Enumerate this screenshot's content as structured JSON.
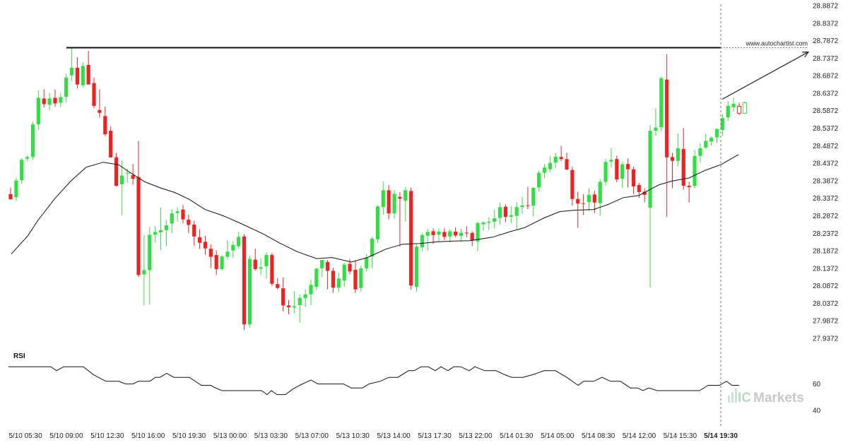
{
  "source_label": "www.autochartist.com",
  "watermark": {
    "prefix": "IC",
    "name": "Markets"
  },
  "colors": {
    "up": "#33dd44",
    "down": "#ee2222",
    "resistance": "#111111",
    "ma": "#111111",
    "vline": "#777777",
    "arrow": "#222222"
  },
  "chart_data": {
    "type": "candlestick",
    "title": "",
    "price_axis": {
      "min": 27.9372,
      "max": 28.8872,
      "ticks": [
        "28.8872",
        "28.8372",
        "28.7872",
        "28.7372",
        "28.6872",
        "28.6372",
        "28.5872",
        "28.5372",
        "28.4872",
        "28.4372",
        "28.3872",
        "28.3372",
        "28.2872",
        "28.2372",
        "28.1872",
        "28.1372",
        "28.0872",
        "28.0372",
        "27.9872",
        "27.9372"
      ]
    },
    "time_axis": {
      "labels": [
        "5/10 05:30",
        "5/10 09:00",
        "5/10 12:30",
        "5/10 16:00",
        "5/10 19:30",
        "5/13 00:00",
        "5/13 03:30",
        "5/13 07:00",
        "5/13 10:30",
        "5/13 14:00",
        "5/13 17:30",
        "5/13 22:00",
        "5/14 01:30",
        "5/14 05:00",
        "5/14 08:30",
        "5/14 12:00",
        "5/14 15:30",
        "5/14 19:30"
      ],
      "current_label": "5/14 19:30"
    },
    "resistance_level": 28.7672,
    "projection": {
      "from": 28.62,
      "to": 28.755
    },
    "candles": [
      [
        28.349,
        28.367,
        28.334,
        28.334
      ],
      [
        28.34,
        28.396,
        28.33,
        28.388
      ],
      [
        28.389,
        28.452,
        28.378,
        28.447
      ],
      [
        28.45,
        28.46,
        28.443,
        28.455
      ],
      [
        28.455,
        28.556,
        28.447,
        28.548
      ],
      [
        28.548,
        28.645,
        28.533,
        28.624
      ],
      [
        28.622,
        28.648,
        28.596,
        28.606
      ],
      [
        28.604,
        28.638,
        28.588,
        28.622
      ],
      [
        28.624,
        28.648,
        28.598,
        28.608
      ],
      [
        28.61,
        28.638,
        28.597,
        28.626
      ],
      [
        28.627,
        28.693,
        28.61,
        28.682
      ],
      [
        28.688,
        28.768,
        28.672,
        28.71
      ],
      [
        28.71,
        28.74,
        28.651,
        28.662
      ],
      [
        28.66,
        28.725,
        28.654,
        28.715
      ],
      [
        28.718,
        28.758,
        28.662,
        28.662
      ],
      [
        28.666,
        28.682,
        28.594,
        28.601
      ],
      [
        28.589,
        28.648,
        28.568,
        28.581
      ],
      [
        28.572,
        28.599,
        28.514,
        28.52
      ],
      [
        28.53,
        28.542,
        28.453,
        28.454
      ],
      [
        28.454,
        28.467,
        28.37,
        28.373
      ],
      [
        28.377,
        28.445,
        28.288,
        28.402
      ],
      [
        28.41,
        28.422,
        28.381,
        28.41
      ],
      [
        28.403,
        28.435,
        28.376,
        28.393
      ],
      [
        28.398,
        28.501,
        28.112,
        28.118
      ],
      [
        28.12,
        28.232,
        28.031,
        28.132
      ],
      [
        28.132,
        28.254,
        28.034,
        28.233
      ],
      [
        28.233,
        28.257,
        28.212,
        28.241
      ],
      [
        28.24,
        28.31,
        28.19,
        28.246
      ],
      [
        28.246,
        28.275,
        28.2,
        28.26
      ],
      [
        28.265,
        28.306,
        28.238,
        28.294
      ],
      [
        28.295,
        28.311,
        28.271,
        28.3
      ],
      [
        28.305,
        28.318,
        28.266,
        28.277
      ],
      [
        28.276,
        28.291,
        28.238,
        28.261
      ],
      [
        28.262,
        28.273,
        28.202,
        28.228
      ],
      [
        28.226,
        28.249,
        28.192,
        28.21
      ],
      [
        28.213,
        28.23,
        28.176,
        28.194
      ],
      [
        28.193,
        28.206,
        28.138,
        28.17
      ],
      [
        28.175,
        28.188,
        28.118,
        28.135
      ],
      [
        28.135,
        28.175,
        28.13,
        28.171
      ],
      [
        28.17,
        28.218,
        28.162,
        28.185
      ],
      [
        28.188,
        28.214,
        28.167,
        28.204
      ],
      [
        28.2,
        28.241,
        28.192,
        28.227
      ],
      [
        28.228,
        28.235,
        27.961,
        27.977
      ],
      [
        27.977,
        28.173,
        27.968,
        28.164
      ],
      [
        28.162,
        28.193,
        28.131,
        28.135
      ],
      [
        28.136,
        28.166,
        28.118,
        28.14
      ],
      [
        28.143,
        28.183,
        28.108,
        28.175
      ],
      [
        28.175,
        28.181,
        28.087,
        28.093
      ],
      [
        28.092,
        28.109,
        28.077,
        28.081
      ],
      [
        28.08,
        28.111,
        28.014,
        28.031
      ],
      [
        28.031,
        28.046,
        28.006,
        28.026
      ],
      [
        28.025,
        28.072,
        28.008,
        28.029
      ],
      [
        28.032,
        28.062,
        27.982,
        28.053
      ],
      [
        28.052,
        28.077,
        28.026,
        28.063
      ],
      [
        28.063,
        28.105,
        28.033,
        28.09
      ],
      [
        28.084,
        28.139,
        28.074,
        28.136
      ],
      [
        28.137,
        28.161,
        28.112,
        28.161
      ],
      [
        28.155,
        28.161,
        28.077,
        28.13
      ],
      [
        28.13,
        28.138,
        28.067,
        28.082
      ],
      [
        28.082,
        28.125,
        28.07,
        28.108
      ],
      [
        28.102,
        28.153,
        28.085,
        28.148
      ],
      [
        28.15,
        28.164,
        28.12,
        28.128
      ],
      [
        28.133,
        28.16,
        28.067,
        28.077
      ],
      [
        28.081,
        28.144,
        28.071,
        28.137
      ],
      [
        28.137,
        28.178,
        28.127,
        28.168
      ],
      [
        28.171,
        28.227,
        28.136,
        28.222
      ],
      [
        28.22,
        28.317,
        28.21,
        28.314
      ],
      [
        28.312,
        28.385,
        28.29,
        28.36
      ],
      [
        28.36,
        28.375,
        28.277,
        28.294
      ],
      [
        28.294,
        28.361,
        28.279,
        28.35
      ],
      [
        28.341,
        28.355,
        28.199,
        28.336
      ],
      [
        28.33,
        28.369,
        28.271,
        28.36
      ],
      [
        28.358,
        28.368,
        28.077,
        28.088
      ],
      [
        28.084,
        28.205,
        28.071,
        28.199
      ],
      [
        28.197,
        28.238,
        28.186,
        28.232
      ],
      [
        28.23,
        28.25,
        28.187,
        28.241
      ],
      [
        28.243,
        28.251,
        28.207,
        28.232
      ],
      [
        28.233,
        28.251,
        28.213,
        28.242
      ],
      [
        28.241,
        28.252,
        28.218,
        28.227
      ],
      [
        28.228,
        28.249,
        28.211,
        28.243
      ],
      [
        28.242,
        28.254,
        28.225,
        28.231
      ],
      [
        28.23,
        28.251,
        28.213,
        28.239
      ],
      [
        28.239,
        28.257,
        28.226,
        28.238
      ],
      [
        28.238,
        28.243,
        28.2,
        28.216
      ],
      [
        28.214,
        28.271,
        28.185,
        28.266
      ],
      [
        28.263,
        28.272,
        28.245,
        28.268
      ],
      [
        28.267,
        28.283,
        28.247,
        28.27
      ],
      [
        28.27,
        28.304,
        28.251,
        28.28
      ],
      [
        28.281,
        28.325,
        28.262,
        28.312
      ],
      [
        28.313,
        28.319,
        28.269,
        28.284
      ],
      [
        28.284,
        28.315,
        28.266,
        28.289
      ],
      [
        28.287,
        28.326,
        28.249,
        28.312
      ],
      [
        28.312,
        28.341,
        28.293,
        28.317
      ],
      [
        28.317,
        28.37,
        28.306,
        28.316
      ],
      [
        28.316,
        28.369,
        28.285,
        28.367
      ],
      [
        28.368,
        28.416,
        28.356,
        28.41
      ],
      [
        28.41,
        28.435,
        28.394,
        28.425
      ],
      [
        28.42,
        28.457,
        28.412,
        28.438
      ],
      [
        28.439,
        28.467,
        28.424,
        28.456
      ],
      [
        28.455,
        28.487,
        28.443,
        28.449
      ],
      [
        28.449,
        28.467,
        28.418,
        28.419
      ],
      [
        28.418,
        28.427,
        28.316,
        28.335
      ],
      [
        28.335,
        28.356,
        28.253,
        28.322
      ],
      [
        28.323,
        28.349,
        28.289,
        28.322
      ],
      [
        28.326,
        28.366,
        28.301,
        28.347
      ],
      [
        28.348,
        28.358,
        28.295,
        28.325
      ],
      [
        28.323,
        28.392,
        28.287,
        28.384
      ],
      [
        28.384,
        28.449,
        28.374,
        28.441
      ],
      [
        28.442,
        28.481,
        28.424,
        28.447
      ],
      [
        28.449,
        28.459,
        28.383,
        28.391
      ],
      [
        28.393,
        28.442,
        28.367,
        28.434
      ],
      [
        28.435,
        28.451,
        28.368,
        28.42
      ],
      [
        28.42,
        28.428,
        28.349,
        28.371
      ],
      [
        28.375,
        28.381,
        28.338,
        28.355
      ],
      [
        28.356,
        28.366,
        28.326,
        28.347
      ],
      [
        28.31,
        28.546,
        28.083,
        28.53
      ],
      [
        28.53,
        28.594,
        28.515,
        28.539
      ],
      [
        28.54,
        28.685,
        28.527,
        28.68
      ],
      [
        28.676,
        28.748,
        28.284,
        28.454
      ],
      [
        28.455,
        28.467,
        28.366,
        28.444
      ],
      [
        28.444,
        28.522,
        28.428,
        28.48
      ],
      [
        28.478,
        28.538,
        28.362,
        28.373
      ],
      [
        28.373,
        28.384,
        28.325,
        28.369
      ],
      [
        28.372,
        28.476,
        28.365,
        28.458
      ],
      [
        28.458,
        28.494,
        28.44,
        28.48
      ],
      [
        28.482,
        28.521,
        28.477,
        28.501
      ],
      [
        28.499,
        28.514,
        28.488,
        28.51
      ],
      [
        28.511,
        28.537,
        28.495,
        28.535
      ],
      [
        28.532,
        28.577,
        28.516,
        28.566
      ],
      [
        28.568,
        28.615,
        28.558,
        28.601
      ],
      [
        28.597,
        28.625,
        28.585,
        28.607
      ],
      [
        28.6,
        28.61,
        28.575,
        28.58
      ],
      [
        28.58,
        28.614,
        28.578,
        28.61
      ]
    ],
    "moving_average": [
      [
        16,
        28.178
      ],
      [
        39,
        28.229
      ],
      [
        54,
        28.275
      ],
      [
        77,
        28.335
      ],
      [
        100,
        28.386
      ],
      [
        122,
        28.426
      ],
      [
        146,
        28.44
      ],
      [
        168,
        28.433
      ],
      [
        183,
        28.412
      ],
      [
        205,
        28.384
      ],
      [
        228,
        28.366
      ],
      [
        247,
        28.354
      ],
      [
        268,
        28.334
      ],
      [
        290,
        28.305
      ],
      [
        315,
        28.288
      ],
      [
        340,
        28.266
      ],
      [
        372,
        28.236
      ],
      [
        395,
        28.21
      ],
      [
        420,
        28.185
      ],
      [
        448,
        28.165
      ],
      [
        470,
        28.168
      ],
      [
        497,
        28.155
      ],
      [
        520,
        28.168
      ],
      [
        546,
        28.192
      ],
      [
        570,
        28.206
      ],
      [
        594,
        28.208
      ],
      [
        620,
        28.213
      ],
      [
        643,
        28.215
      ],
      [
        665,
        28.216
      ],
      [
        697,
        28.226
      ],
      [
        722,
        28.242
      ],
      [
        742,
        28.253
      ],
      [
        770,
        28.281
      ],
      [
        792,
        28.299
      ],
      [
        812,
        28.303
      ],
      [
        840,
        28.305
      ],
      [
        860,
        28.319
      ],
      [
        882,
        28.339
      ],
      [
        904,
        28.345
      ],
      [
        932,
        28.375
      ],
      [
        950,
        28.386
      ],
      [
        975,
        28.395
      ],
      [
        998,
        28.417
      ],
      [
        1021,
        28.434
      ],
      [
        1045,
        28.462
      ]
    ]
  },
  "rsi": {
    "title": "RSI",
    "min": 30,
    "max": 80,
    "ticks": [
      "60",
      "40"
    ],
    "values": [
      [
        12,
        73
      ],
      [
        24,
        73
      ],
      [
        36,
        73
      ],
      [
        48,
        73
      ],
      [
        60,
        73
      ],
      [
        72,
        73
      ],
      [
        80,
        70
      ],
      [
        90,
        73
      ],
      [
        100,
        73
      ],
      [
        108,
        73
      ],
      [
        118,
        73
      ],
      [
        132,
        67
      ],
      [
        150,
        62
      ],
      [
        168,
        62
      ],
      [
        178,
        60
      ],
      [
        188,
        60
      ],
      [
        196,
        62
      ],
      [
        204,
        62
      ],
      [
        212,
        62
      ],
      [
        220,
        65
      ],
      [
        226,
        65
      ],
      [
        236,
        68
      ],
      [
        246,
        65
      ],
      [
        255,
        65
      ],
      [
        268,
        65
      ],
      [
        285,
        59
      ],
      [
        298,
        59
      ],
      [
        305,
        57
      ],
      [
        314,
        55
      ],
      [
        328,
        55
      ],
      [
        342,
        55
      ],
      [
        356,
        55
      ],
      [
        370,
        55
      ],
      [
        378,
        52
      ],
      [
        384,
        55
      ],
      [
        392,
        52
      ],
      [
        404,
        52
      ],
      [
        414,
        56
      ],
      [
        424,
        59
      ],
      [
        440,
        63
      ],
      [
        450,
        60
      ],
      [
        460,
        60
      ],
      [
        470,
        60
      ],
      [
        486,
        60
      ],
      [
        497,
        57
      ],
      [
        513,
        57
      ],
      [
        522,
        60
      ],
      [
        538,
        62
      ],
      [
        550,
        65
      ],
      [
        563,
        65
      ],
      [
        578,
        70
      ],
      [
        586,
        70
      ],
      [
        596,
        73
      ],
      [
        606,
        73
      ],
      [
        616,
        70
      ],
      [
        624,
        73
      ],
      [
        634,
        70
      ],
      [
        642,
        73
      ],
      [
        652,
        73
      ],
      [
        664,
        70
      ],
      [
        672,
        73
      ],
      [
        686,
        70
      ],
      [
        702,
        70
      ],
      [
        714,
        67
      ],
      [
        724,
        65
      ],
      [
        740,
        65
      ],
      [
        754,
        67
      ],
      [
        770,
        70
      ],
      [
        786,
        70
      ],
      [
        802,
        65
      ],
      [
        818,
        59
      ],
      [
        826,
        62
      ],
      [
        840,
        62
      ],
      [
        852,
        65
      ],
      [
        864,
        62
      ],
      [
        878,
        62
      ],
      [
        892,
        57
      ],
      [
        902,
        57
      ],
      [
        910,
        55
      ],
      [
        918,
        57
      ],
      [
        930,
        55
      ],
      [
        950,
        55
      ],
      [
        970,
        55
      ],
      [
        990,
        55
      ],
      [
        1002,
        59
      ],
      [
        1018,
        59
      ],
      [
        1028,
        62
      ],
      [
        1036,
        59
      ],
      [
        1046,
        59
      ]
    ]
  }
}
